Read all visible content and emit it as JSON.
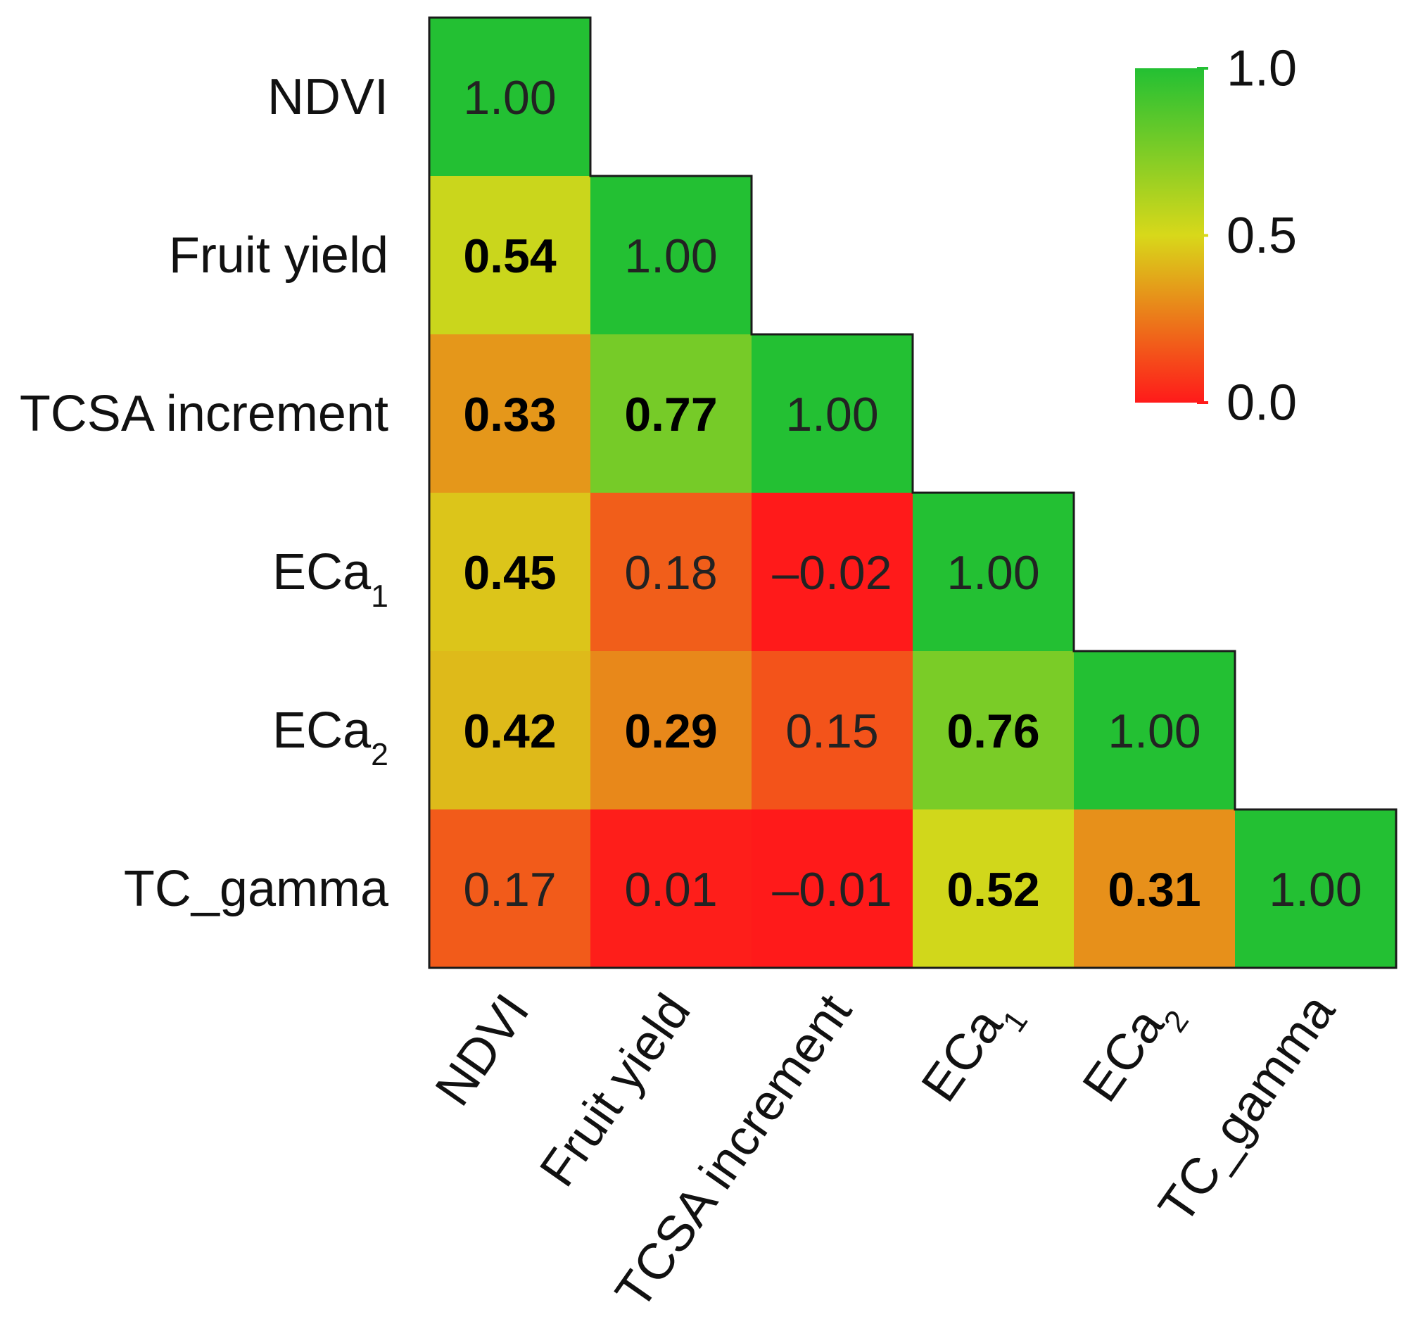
{
  "chart_data": {
    "type": "heatmap",
    "title": "",
    "matrix_shape": "lower-triangular",
    "variables": [
      {
        "key": "ndvi",
        "label": "NDVI",
        "sub": ""
      },
      {
        "key": "fruit-yield",
        "label": "Fruit yield",
        "sub": ""
      },
      {
        "key": "tcsa-increment",
        "label": "TCSA increment",
        "sub": ""
      },
      {
        "key": "eca1",
        "label": "ECa",
        "sub": "1"
      },
      {
        "key": "eca2",
        "label": "ECa",
        "sub": "2"
      },
      {
        "key": "tc-gamma",
        "label": "TC_gamma",
        "sub": ""
      }
    ],
    "values": [
      [
        1.0
      ],
      [
        0.54,
        1.0
      ],
      [
        0.33,
        0.77,
        1.0
      ],
      [
        0.45,
        0.18,
        -0.02,
        1.0
      ],
      [
        0.42,
        0.29,
        0.15,
        0.76,
        1.0
      ],
      [
        0.17,
        0.01,
        -0.01,
        0.52,
        0.31,
        1.0
      ]
    ],
    "value_labels": [
      [
        "1.00"
      ],
      [
        "0.54",
        "1.00"
      ],
      [
        "0.33",
        "0.77",
        "1.00"
      ],
      [
        "0.45",
        "0.18",
        "–0.02",
        "1.00"
      ],
      [
        "0.42",
        "0.29",
        "0.15",
        "0.76",
        "1.00"
      ],
      [
        "0.17",
        "0.01",
        "–0.01",
        "0.52",
        "0.31",
        "1.00"
      ]
    ],
    "bold": [
      [
        false
      ],
      [
        true,
        false
      ],
      [
        true,
        true,
        false
      ],
      [
        true,
        false,
        false,
        false
      ],
      [
        true,
        true,
        false,
        true,
        false
      ],
      [
        false,
        false,
        false,
        true,
        true,
        false
      ]
    ],
    "colorbar": {
      "range": [
        0.0,
        1.0
      ],
      "ticks": [
        1.0,
        0.5,
        0.0
      ],
      "tick_labels": [
        "1.0",
        "0.5",
        "0.0"
      ],
      "colors": {
        "low": "#ff1a1a",
        "mid": "#d8d81a",
        "high": "#23c033"
      }
    },
    "cell_border_color": "#1a1a1a"
  }
}
